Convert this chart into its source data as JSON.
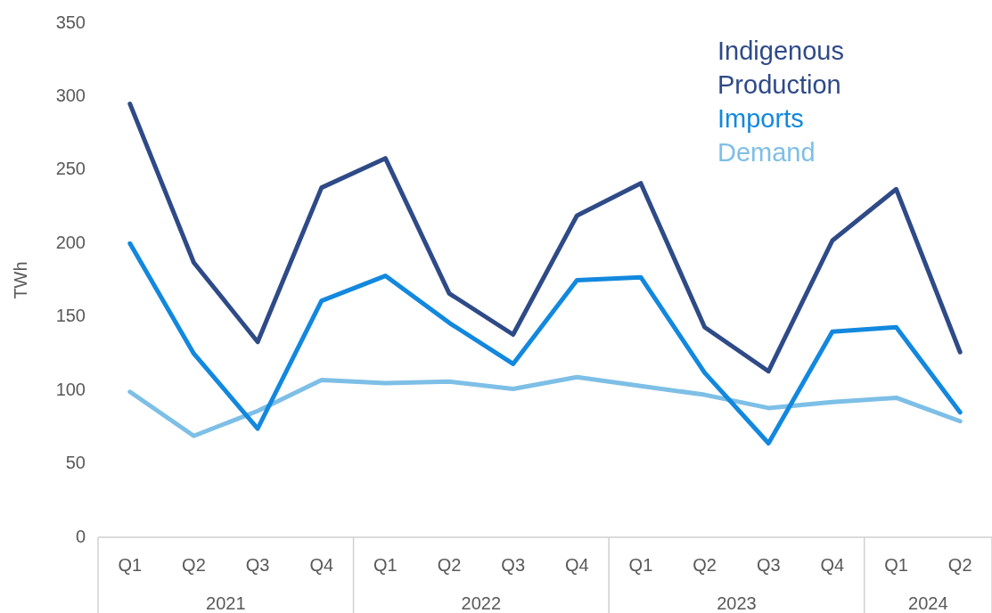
{
  "chart_data": {
    "type": "line",
    "ylabel": "TWh",
    "categories": [
      "Q1",
      "Q2",
      "Q3",
      "Q4",
      "Q1",
      "Q2",
      "Q3",
      "Q4",
      "Q1",
      "Q2",
      "Q3",
      "Q4",
      "Q1",
      "Q2"
    ],
    "series": [
      {
        "name": "Indigenous Production",
        "color": "#2e4a87",
        "values": [
          295,
          187,
          133,
          238,
          258,
          166,
          138,
          219,
          241,
          143,
          113,
          202,
          237,
          126
        ]
      },
      {
        "name": "Imports",
        "color": "#1288de",
        "values": [
          200,
          125,
          74,
          161,
          178,
          146,
          118,
          175,
          177,
          112,
          64,
          140,
          143,
          85
        ]
      },
      {
        "name": "Demand",
        "color": "#7dbfe6",
        "values": [
          99,
          69,
          86,
          107,
          105,
          106,
          101,
          109,
          103,
          97,
          88,
          92,
          95,
          79
        ]
      }
    ],
    "ylim": [
      0,
      350
    ],
    "yticks": [
      0,
      50,
      100,
      150,
      200,
      250,
      300,
      350
    ],
    "grid": false,
    "legend": "top right",
    "marker": "none",
    "line_style": "solid",
    "annotations": [
      "2021",
      "2022",
      "2023",
      "2024"
    ]
  }
}
